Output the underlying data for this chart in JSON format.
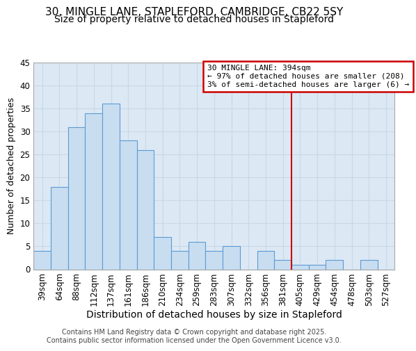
{
  "title_line1": "30, MINGLE LANE, STAPLEFORD, CAMBRIDGE, CB22 5SY",
  "title_line2": "Size of property relative to detached houses in Stapleford",
  "xlabel": "Distribution of detached houses by size in Stapleford",
  "ylabel": "Number of detached properties",
  "categories": [
    "39sqm",
    "64sqm",
    "88sqm",
    "112sqm",
    "137sqm",
    "161sqm",
    "186sqm",
    "210sqm",
    "234sqm",
    "259sqm",
    "283sqm",
    "307sqm",
    "332sqm",
    "356sqm",
    "381sqm",
    "405sqm",
    "429sqm",
    "454sqm",
    "478sqm",
    "503sqm",
    "527sqm"
  ],
  "values": [
    4,
    18,
    31,
    34,
    36,
    28,
    26,
    7,
    4,
    6,
    4,
    5,
    0,
    4,
    2,
    1,
    1,
    2,
    0,
    2,
    0
  ],
  "bar_color": "#c8ddf0",
  "bar_edge_color": "#5b9bd5",
  "grid_color": "#c8d8e8",
  "background_color": "#dce8f4",
  "vline_x_index": 14,
  "vline_color": "#cc0000",
  "annotation_text": "30 MINGLE LANE: 394sqm\n← 97% of detached houses are smaller (208)\n3% of semi-detached houses are larger (6) →",
  "annotation_box_color": "#cc0000",
  "ylim": [
    0,
    45
  ],
  "yticks": [
    0,
    5,
    10,
    15,
    20,
    25,
    30,
    35,
    40,
    45
  ],
  "footer": "Contains HM Land Registry data © Crown copyright and database right 2025.\nContains public sector information licensed under the Open Government Licence v3.0.",
  "title_fontsize": 11,
  "subtitle_fontsize": 10,
  "ylabel_fontsize": 9,
  "xlabel_fontsize": 10,
  "tick_fontsize": 8.5,
  "footer_fontsize": 7
}
